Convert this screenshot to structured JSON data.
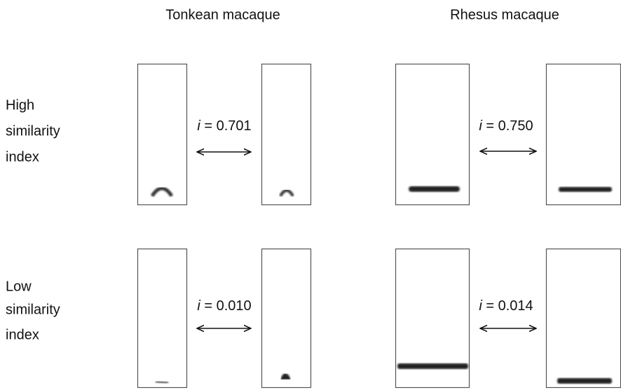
{
  "columns": [
    "Tonkean macaque",
    "Rhesus macaque"
  ],
  "rows": [
    {
      "label": [
        "High",
        "similarity",
        "index"
      ],
      "pairs": [
        {
          "symbol": "i",
          "text": "= 0.701"
        },
        {
          "symbol": "i",
          "text": "= 0.750"
        }
      ]
    },
    {
      "label": [
        "Low",
        "similarity",
        "index"
      ],
      "pairs": [
        {
          "symbol": "i",
          "text": "= 0.010"
        },
        {
          "symbol": "i",
          "text": "= 0.014"
        }
      ]
    }
  ]
}
